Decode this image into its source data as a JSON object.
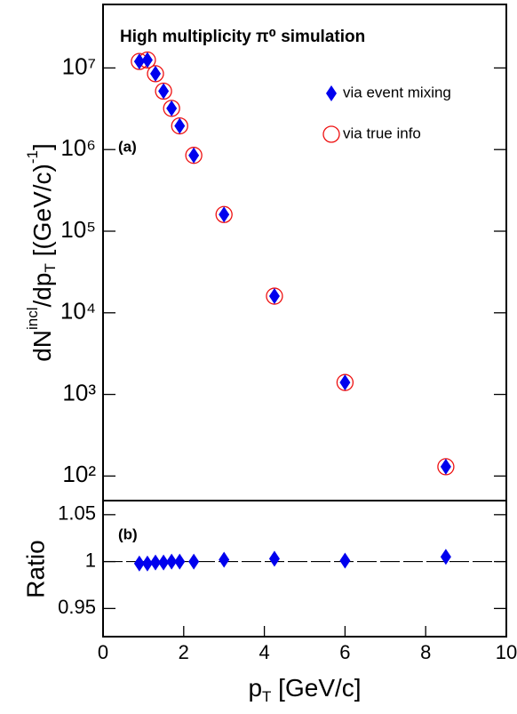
{
  "chart_data": [
    {
      "type": "scatter",
      "title": "High multiplicity π⁰ simulation",
      "panel_label": "(a)",
      "y_label": [
        "dN",
        "incl",
        "/dp",
        "T",
        " [(GeV/c)",
        "-1",
        "]"
      ],
      "y_log": true,
      "ylim": [
        50,
        60000000
      ],
      "yticks": [
        {
          "value": 100,
          "label": "10²"
        },
        {
          "value": 1000,
          "label": "10³"
        },
        {
          "value": 10000,
          "label": "10⁴"
        },
        {
          "value": 100000,
          "label": "10⁵"
        },
        {
          "value": 1000000,
          "label": "10⁶"
        },
        {
          "value": 10000000,
          "label": "10⁷"
        }
      ],
      "xlim": [
        0,
        10
      ],
      "x": [
        0.9,
        1.1,
        1.3,
        1.5,
        1.7,
        1.9,
        2.25,
        3.0,
        4.25,
        6.0,
        8.5
      ],
      "series": [
        {
          "name": "via event mixing",
          "color": "#0000ee",
          "marker": "diamond",
          "values": [
            12000000,
            12500000,
            8500000,
            5200000,
            3200000,
            1950000,
            850000,
            160000,
            16000,
            1400,
            130
          ]
        },
        {
          "name": "via true info",
          "color": "#ee1111",
          "marker": "circle",
          "values": [
            12000000,
            12500000,
            8500000,
            5200000,
            3200000,
            1950000,
            850000,
            160000,
            16000,
            1400,
            130
          ]
        }
      ]
    },
    {
      "type": "scatter",
      "panel_label": "(b)",
      "y_label": "Ratio",
      "ylim": [
        0.92,
        1.065
      ],
      "yticks": [
        0.95,
        1,
        1.05
      ],
      "reference_line": 1,
      "xlim": [
        0,
        10
      ],
      "xticks": [
        0,
        2,
        4,
        6,
        8,
        10
      ],
      "x_label": [
        "p",
        "T",
        " [GeV/c]"
      ],
      "x": [
        0.9,
        1.1,
        1.3,
        1.5,
        1.7,
        1.9,
        2.25,
        3.0,
        4.25,
        6.0,
        8.5
      ],
      "series": [
        {
          "name": "via event mixing",
          "color": "#0000ee",
          "marker": "diamond",
          "values": [
            0.998,
            0.998,
            0.999,
            0.999,
            1.0,
            1.0,
            1.0,
            1.002,
            1.003,
            1.001,
            1.005
          ]
        }
      ]
    }
  ]
}
